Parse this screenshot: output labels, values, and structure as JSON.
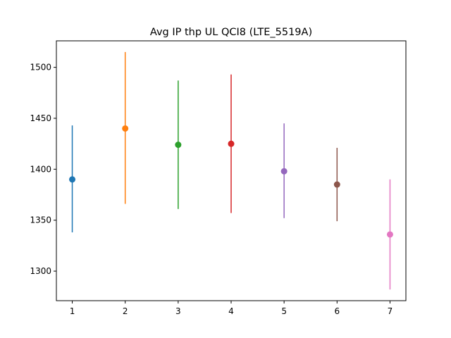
{
  "chart_data": {
    "type": "scatter",
    "title": "Avg IP thp UL QCI8 (LTE_5519A)",
    "xlabel": "",
    "ylabel": "",
    "x_ticks": [
      1,
      2,
      3,
      4,
      5,
      6,
      7
    ],
    "y_ticks": [
      1300,
      1350,
      1400,
      1450,
      1500
    ],
    "xlim": [
      0.7,
      7.3
    ],
    "ylim": [
      1271,
      1526
    ],
    "grid": false,
    "points": [
      {
        "x": 1,
        "y": 1390,
        "low": 1338,
        "high": 1443,
        "color": "#1f77b4"
      },
      {
        "x": 2,
        "y": 1440,
        "low": 1366,
        "high": 1515,
        "color": "#ff7f0e"
      },
      {
        "x": 3,
        "y": 1424,
        "low": 1361,
        "high": 1487,
        "color": "#2ca02c"
      },
      {
        "x": 4,
        "y": 1425,
        "low": 1357,
        "high": 1493,
        "color": "#d62728"
      },
      {
        "x": 5,
        "y": 1398,
        "low": 1352,
        "high": 1445,
        "color": "#9467bd"
      },
      {
        "x": 6,
        "y": 1385,
        "low": 1349,
        "high": 1421,
        "color": "#8c564b"
      },
      {
        "x": 7,
        "y": 1336,
        "low": 1282,
        "high": 1390,
        "color": "#e377c2"
      }
    ]
  }
}
